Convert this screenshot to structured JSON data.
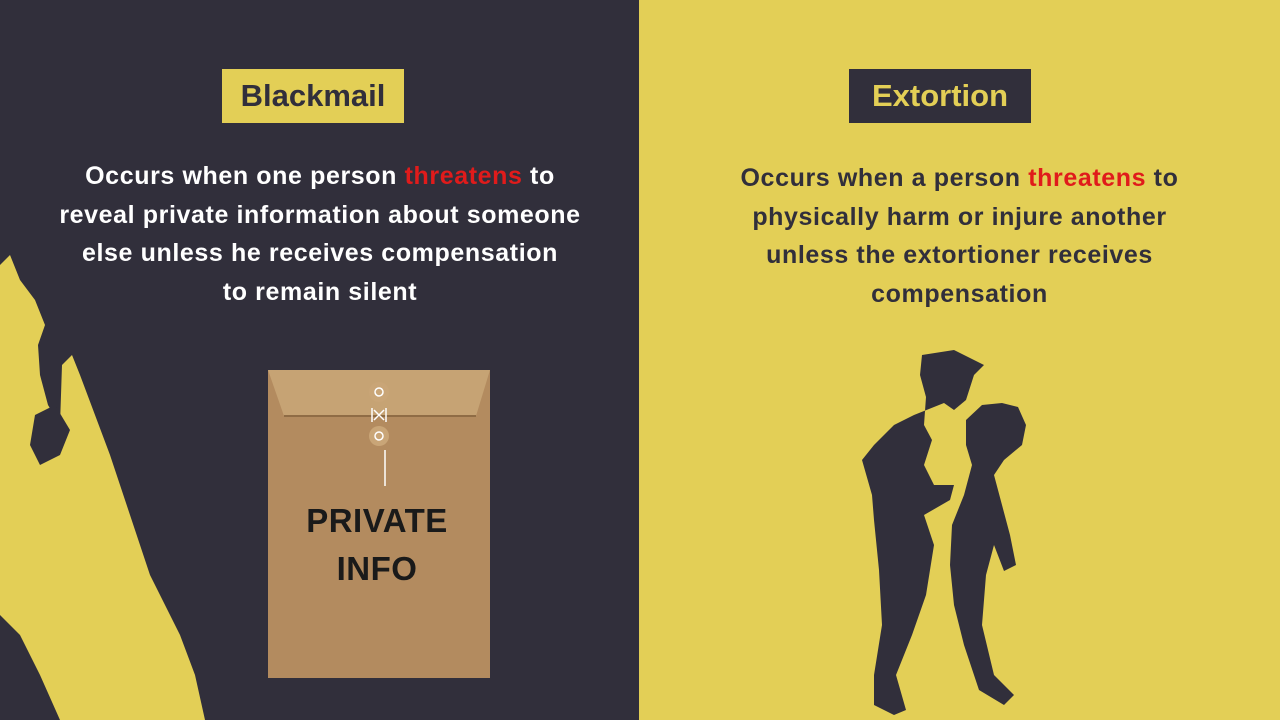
{
  "blackmail": {
    "title": "Blackmail",
    "description": {
      "line1_before": "Occurs when one person ",
      "highlight": "threatens",
      "line1_after": " to",
      "line2": "reveal private information about someone",
      "line3": "else unless he receives compensation",
      "line4": "to remain silent"
    },
    "envelope_label_1": "PRIVATE",
    "envelope_label_2": "INFO",
    "envelope_icon": "envelope-icon",
    "figure_icon": "silhouette-person-icon"
  },
  "extortion": {
    "title": "Extortion",
    "description": {
      "line1_before": "Occurs when a person ",
      "highlight": "threatens",
      "line1_after": " to",
      "line2": "physically harm or injure another",
      "line3": "unless the extortioner receives",
      "line4": "compensation"
    },
    "figure_icon": "silhouette-choking-icon"
  },
  "colors": {
    "dark": "#312f3b",
    "yellow": "#e3cf56",
    "highlight": "#e01b1b",
    "envelope": "#b38b5f"
  }
}
